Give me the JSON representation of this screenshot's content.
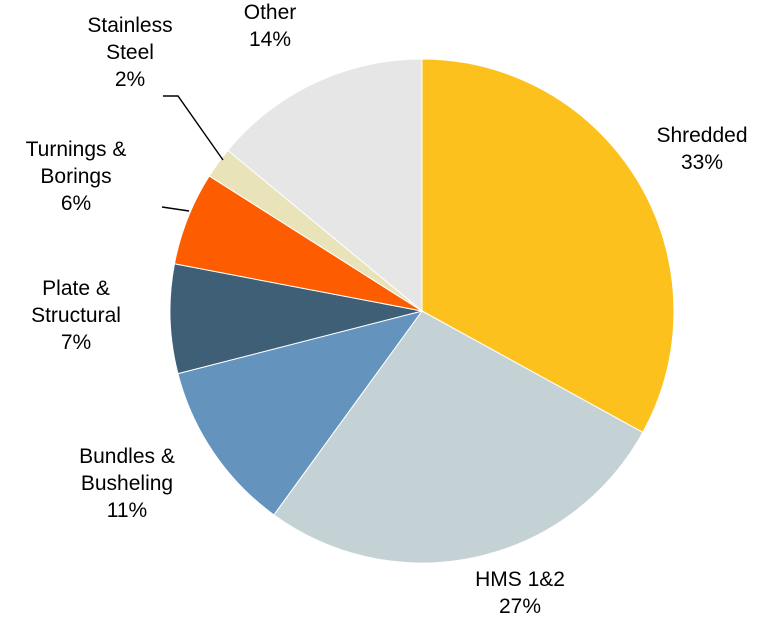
{
  "chart_data": {
    "type": "pie",
    "title": "",
    "start_angle_deg": 90,
    "direction": "clockwise",
    "slices": [
      {
        "name": "Shredded",
        "label_lines": [
          "Shredded"
        ],
        "value": 33,
        "value_text": "33%",
        "color": "#FDC11E"
      },
      {
        "name": "HMS 1&2",
        "label_lines": [
          "HMS 1&2"
        ],
        "value": 27,
        "value_text": "27%",
        "color": "#C4D2D5"
      },
      {
        "name": "Bundles & Busheling",
        "label_lines": [
          "Bundles &",
          "Busheling"
        ],
        "value": 11,
        "value_text": "11%",
        "color": "#6494BD"
      },
      {
        "name": "Plate & Structural",
        "label_lines": [
          "Plate &",
          "Structural"
        ],
        "value": 7,
        "value_text": "7%",
        "color": "#3F5F76"
      },
      {
        "name": "Turnings & Borings",
        "label_lines": [
          "Turnings &",
          "Borings"
        ],
        "value": 6,
        "value_text": "6%",
        "color": "#FE5C00"
      },
      {
        "name": "Stainless Steel",
        "label_lines": [
          "Stainless",
          "Steel"
        ],
        "value": 2,
        "value_text": "2%",
        "color": "#E8E3B8"
      },
      {
        "name": "Other",
        "label_lines": [
          "Other"
        ],
        "value": 14,
        "value_text": "14%",
        "color": "#E6E6E6"
      }
    ]
  }
}
